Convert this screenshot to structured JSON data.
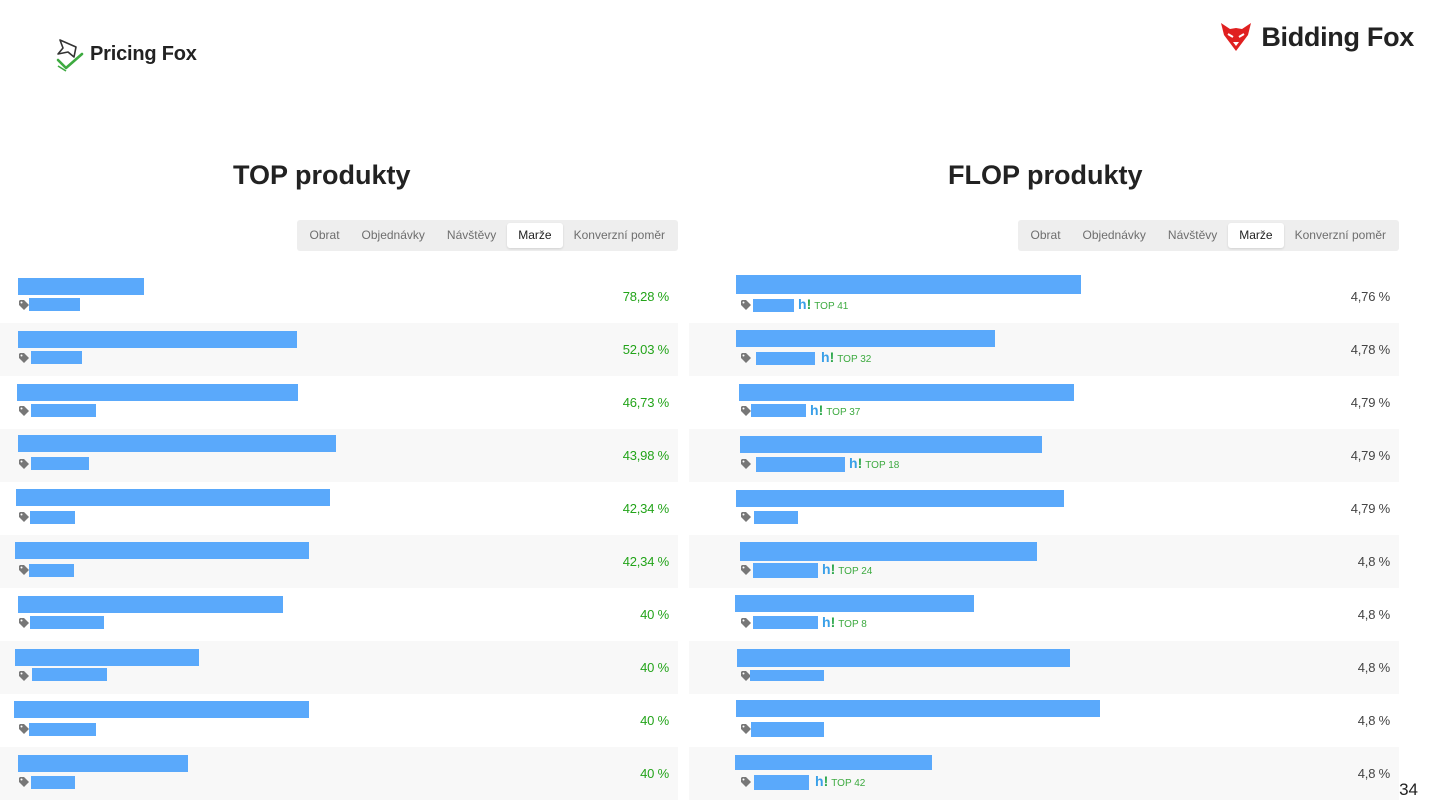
{
  "header": {
    "left_logo": {
      "name": "Pricing Fox",
      "icon": "pricing-fox-icon"
    },
    "right_logo": {
      "name": "Bidding Fox",
      "icon": "bidding-fox-icon",
      "color": "#e02020"
    }
  },
  "colors": {
    "bar": "#5aa9fb",
    "positive": "#23a41a",
    "heureka_blue": "#3aa0e8",
    "heureka_green": "#3daa40"
  },
  "tabs": [
    "Obrat",
    "Objednávky",
    "Návštěvy",
    "Marže",
    "Konverzní poměr"
  ],
  "active_tab": "Marže",
  "top": {
    "title": "TOP produkty",
    "rows": [
      {
        "value": "78,28 %"
      },
      {
        "value": "52,03 %"
      },
      {
        "value": "46,73 %"
      },
      {
        "value": "43,98 %"
      },
      {
        "value": "42,34 %"
      },
      {
        "value": "42,34 %"
      },
      {
        "value": "40 %"
      },
      {
        "value": "40 %"
      },
      {
        "value": "40 %"
      },
      {
        "value": "40 %"
      }
    ]
  },
  "flop": {
    "title": "FLOP produkty",
    "rows": [
      {
        "value": "4,76 %",
        "rank": "TOP 41"
      },
      {
        "value": "4,78 %",
        "rank": "TOP 32"
      },
      {
        "value": "4,79 %",
        "rank": "TOP 37"
      },
      {
        "value": "4,79 %",
        "rank": "TOP 18"
      },
      {
        "value": "4,79 %",
        "rank": ""
      },
      {
        "value": "4,8 %",
        "rank": "TOP 24"
      },
      {
        "value": "4,8 %",
        "rank": "TOP 8"
      },
      {
        "value": "4,8 %",
        "rank": ""
      },
      {
        "value": "4,8 %",
        "rank": ""
      },
      {
        "value": "4,8 %",
        "rank": "TOP 42"
      }
    ]
  },
  "page_number": "34"
}
